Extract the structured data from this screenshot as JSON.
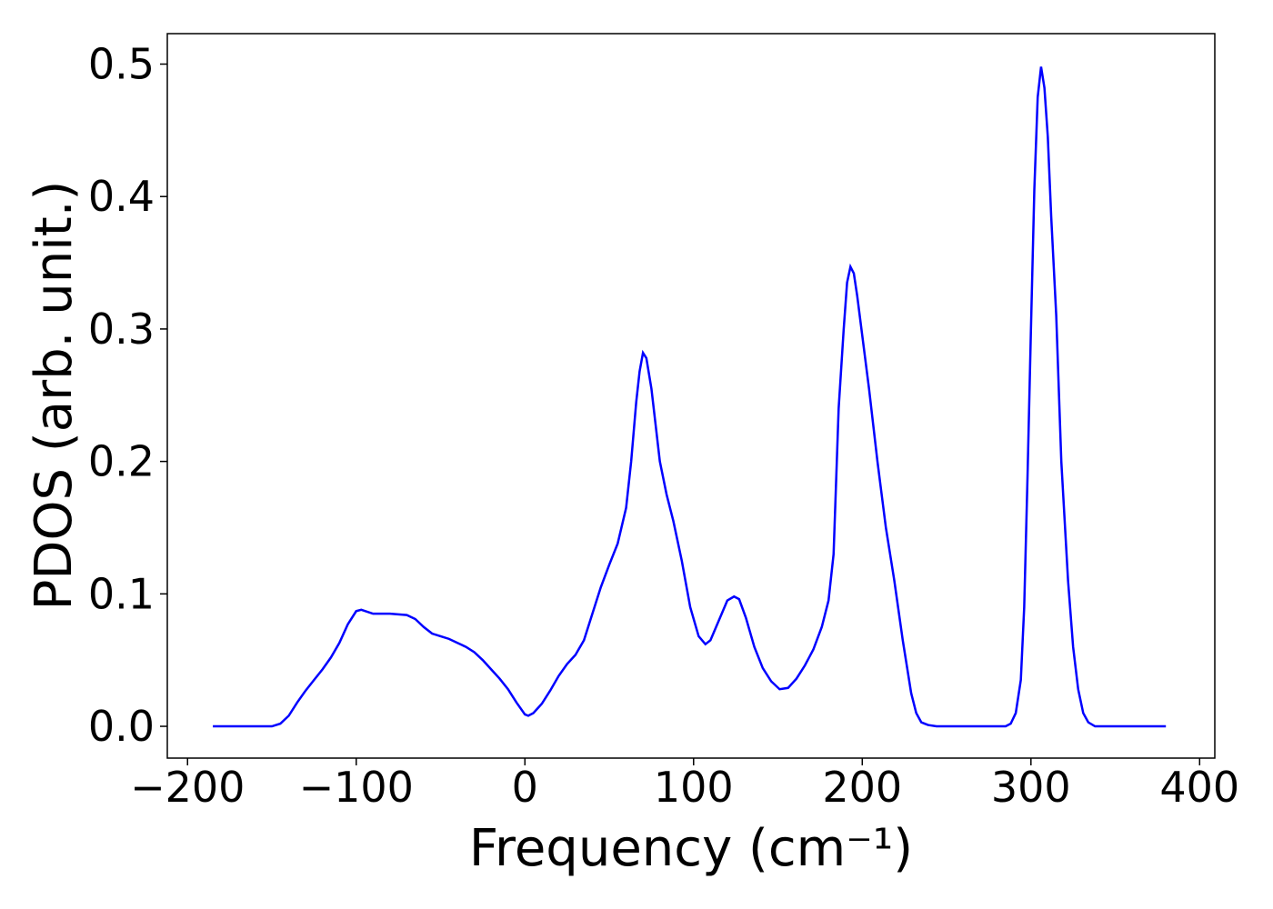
{
  "chart_data": {
    "type": "line",
    "x_label": "Frequency (cm⁻¹)",
    "y_label": "PDOS (arb. unit.)",
    "xlim": [
      -212,
      409
    ],
    "ylim": [
      -0.024,
      0.523
    ],
    "xticks": [
      {
        "value": -200,
        "label": "−200"
      },
      {
        "value": -100,
        "label": "−100"
      },
      0,
      100,
      200,
      300,
      400
    ],
    "yticks": [
      {
        "value": 0,
        "label": "0.0"
      },
      0.1,
      0.2,
      0.3,
      0.4,
      0.5
    ],
    "grid": false,
    "x": [
      -185,
      -150,
      -145,
      -140,
      -135,
      -130,
      -125,
      -120,
      -115,
      -110,
      -105,
      -100,
      -97,
      -90,
      -80,
      -70,
      -65,
      -60,
      -55,
      -50,
      -45,
      -40,
      -35,
      -30,
      -25,
      -20,
      -15,
      -10,
      -5,
      0,
      2,
      5,
      10,
      15,
      20,
      25,
      30,
      35,
      40,
      45,
      50,
      55,
      60,
      63,
      66,
      68,
      70,
      72,
      75,
      80,
      84,
      88,
      93,
      98,
      103,
      107,
      110,
      115,
      120,
      124,
      127,
      131,
      136,
      141,
      146,
      151,
      156,
      161,
      166,
      171,
      176,
      180,
      183,
      186,
      189,
      191,
      193,
      195,
      197,
      200,
      204,
      209,
      214,
      219,
      224,
      229,
      232,
      235,
      239,
      244,
      285,
      288,
      291,
      294,
      296,
      298,
      300,
      302,
      304,
      306,
      308,
      310,
      312,
      315,
      318,
      322,
      325,
      328,
      331,
      334,
      338,
      345,
      380
    ],
    "series": [
      {
        "name": "PDOS",
        "color": "#0000ff",
        "values": [
          0,
          0,
          0.002,
          0.008,
          0.018,
          0.027,
          0.035,
          0.043,
          0.052,
          0.063,
          0.077,
          0.087,
          0.088,
          0.085,
          0.085,
          0.084,
          0.081,
          0.075,
          0.07,
          0.068,
          0.066,
          0.063,
          0.06,
          0.056,
          0.05,
          0.043,
          0.036,
          0.028,
          0.018,
          0.009,
          0.008,
          0.01,
          0.017,
          0.027,
          0.038,
          0.047,
          0.054,
          0.065,
          0.085,
          0.105,
          0.122,
          0.138,
          0.165,
          0.2,
          0.245,
          0.268,
          0.282,
          0.278,
          0.255,
          0.2,
          0.175,
          0.155,
          0.125,
          0.09,
          0.068,
          0.062,
          0.065,
          0.08,
          0.095,
          0.098,
          0.096,
          0.082,
          0.06,
          0.044,
          0.034,
          0.028,
          0.029,
          0.036,
          0.046,
          0.058,
          0.075,
          0.095,
          0.13,
          0.24,
          0.3,
          0.335,
          0.347,
          0.342,
          0.325,
          0.295,
          0.255,
          0.2,
          0.15,
          0.11,
          0.065,
          0.025,
          0.01,
          0.003,
          0.001,
          0,
          0,
          0.002,
          0.01,
          0.035,
          0.09,
          0.19,
          0.3,
          0.405,
          0.475,
          0.498,
          0.482,
          0.445,
          0.385,
          0.31,
          0.2,
          0.11,
          0.06,
          0.028,
          0.01,
          0.003,
          0,
          0,
          0
        ]
      }
    ]
  }
}
